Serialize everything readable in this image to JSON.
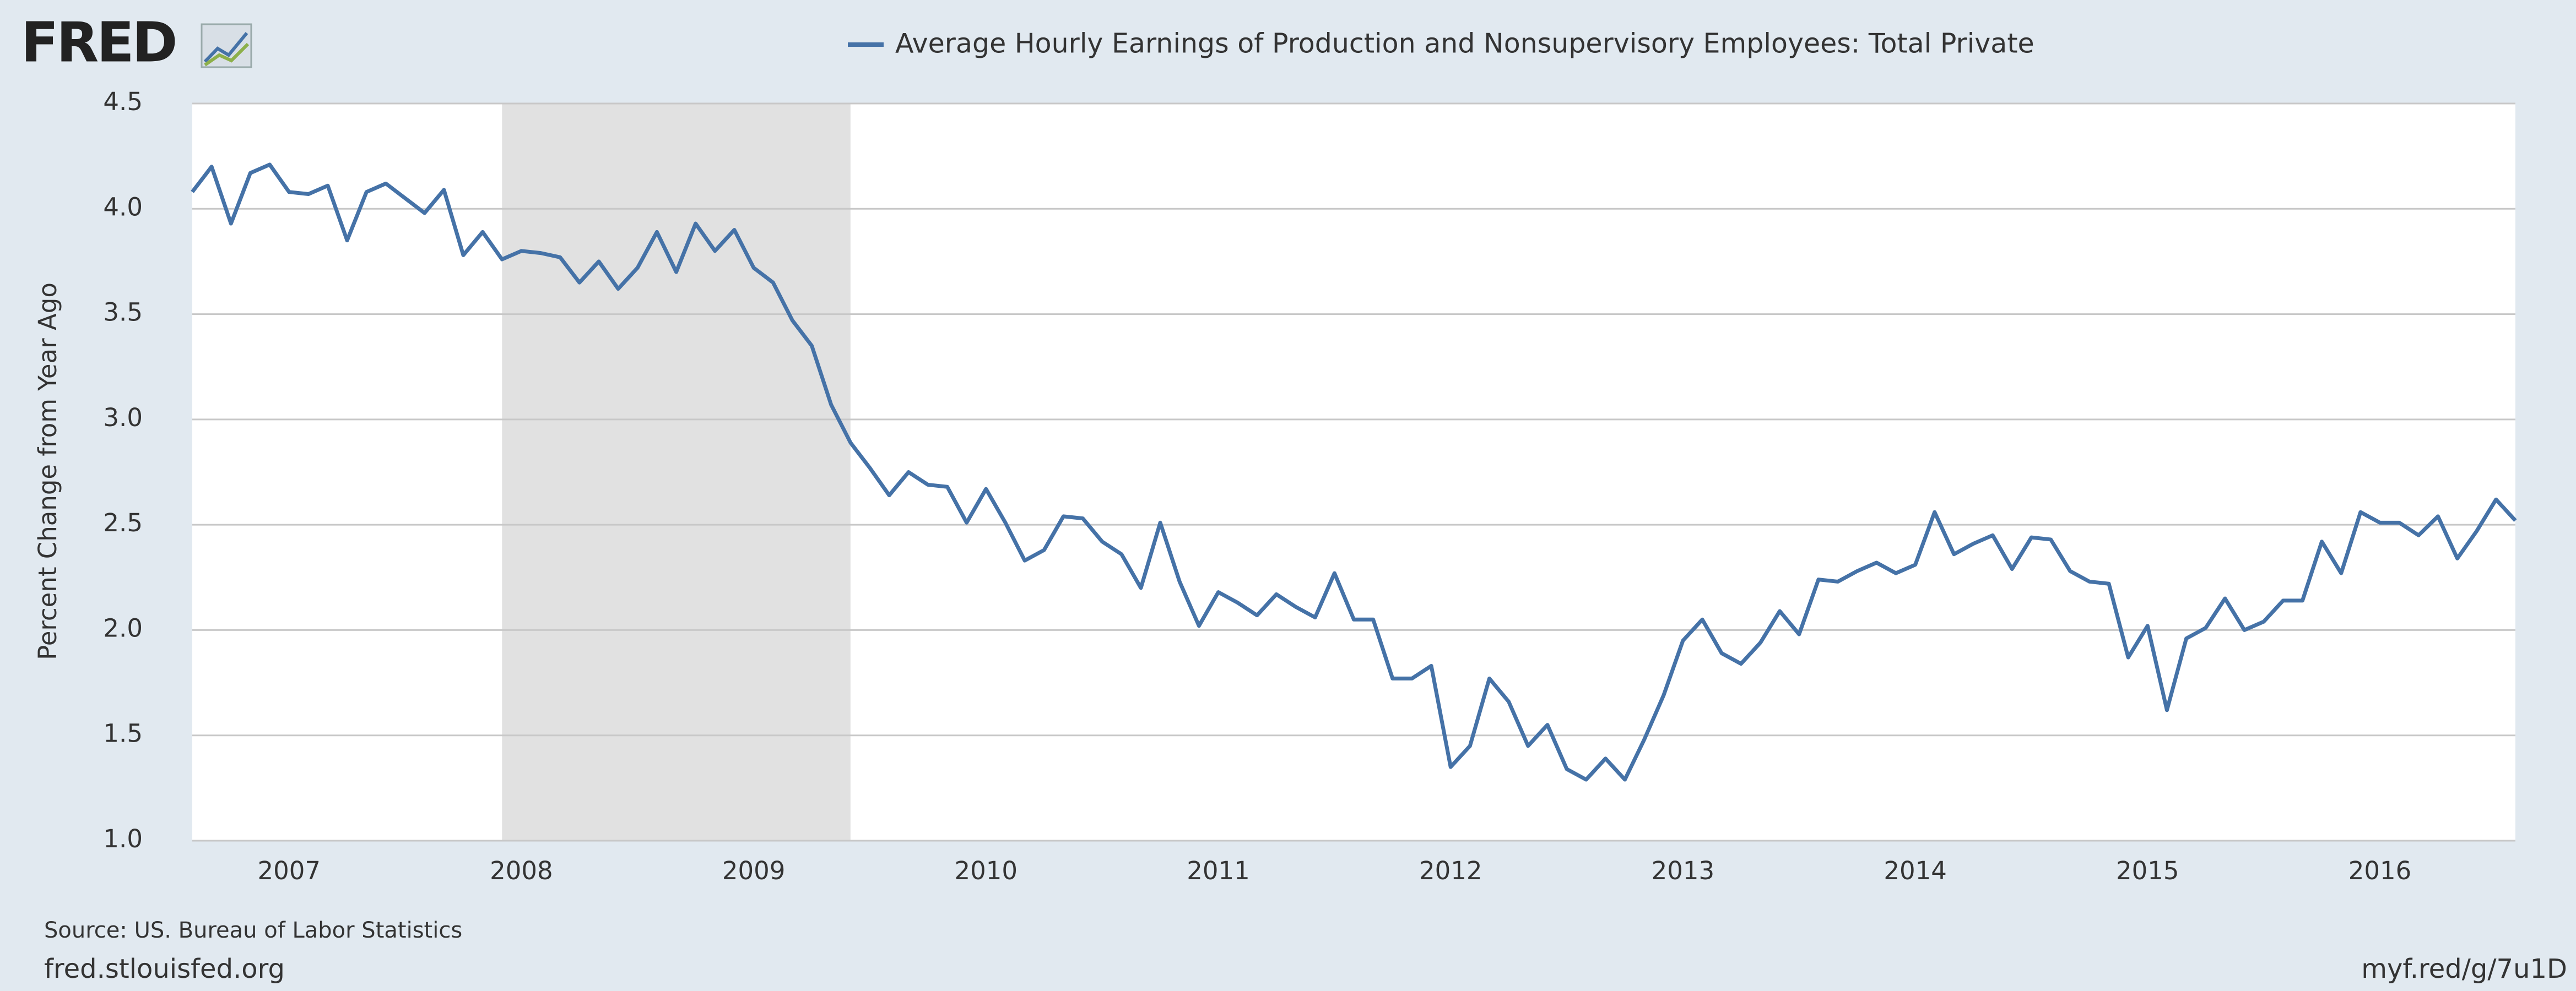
{
  "chart_data": {
    "type": "line",
    "logo": "FRED",
    "ylabel": "Percent Change from Year Ago",
    "source": "Source: US. Bureau of Labor Statistics",
    "site": "fred.stlouisfed.org",
    "short_url": "myf.red/g/7u1D",
    "grid": true,
    "recession_color": "#e1e1e1",
    "recessions": [
      [
        "2007-12",
        "2009-06"
      ]
    ],
    "xlim": [
      "2006-08",
      "2016-08"
    ],
    "xticks": [
      "2007",
      "2008",
      "2009",
      "2010",
      "2011",
      "2012",
      "2013",
      "2014",
      "2015",
      "2016"
    ],
    "ylim": [
      1.0,
      4.5
    ],
    "yticks": [
      {
        "value": 1,
        "label": "1.0"
      },
      1.5,
      {
        "value": 2,
        "label": "2.0"
      },
      2.5,
      {
        "value": 3,
        "label": "3.0"
      },
      3.5,
      {
        "value": 4,
        "label": "4.0"
      },
      4.5
    ],
    "x": [
      "2006-08",
      "2006-09",
      "2006-10",
      "2006-11",
      "2006-12",
      "2007-01",
      "2007-02",
      "2007-03",
      "2007-04",
      "2007-05",
      "2007-06",
      "2007-07",
      "2007-08",
      "2007-09",
      "2007-10",
      "2007-11",
      "2007-12",
      "2008-01",
      "2008-02",
      "2008-03",
      "2008-04",
      "2008-05",
      "2008-06",
      "2008-07",
      "2008-08",
      "2008-09",
      "2008-10",
      "2008-11",
      "2008-12",
      "2009-01",
      "2009-02",
      "2009-03",
      "2009-04",
      "2009-05",
      "2009-06",
      "2009-07",
      "2009-08",
      "2009-09",
      "2009-10",
      "2009-11",
      "2009-12",
      "2010-01",
      "2010-02",
      "2010-03",
      "2010-04",
      "2010-05",
      "2010-06",
      "2010-07",
      "2010-08",
      "2010-09",
      "2010-10",
      "2010-11",
      "2010-12",
      "2011-01",
      "2011-02",
      "2011-03",
      "2011-04",
      "2011-05",
      "2011-06",
      "2011-07",
      "2011-08",
      "2011-09",
      "2011-10",
      "2011-11",
      "2011-12",
      "2012-01",
      "2012-02",
      "2012-03",
      "2012-04",
      "2012-05",
      "2012-06",
      "2012-07",
      "2012-08",
      "2012-09",
      "2012-10",
      "2012-11",
      "2012-12",
      "2013-01",
      "2013-02",
      "2013-03",
      "2013-04",
      "2013-05",
      "2013-06",
      "2013-07",
      "2013-08",
      "2013-09",
      "2013-10",
      "2013-11",
      "2013-12",
      "2014-01",
      "2014-02",
      "2014-03",
      "2014-04",
      "2014-05",
      "2014-06",
      "2014-07",
      "2014-08",
      "2014-09",
      "2014-10",
      "2014-11",
      "2014-12",
      "2015-01",
      "2015-02",
      "2015-03",
      "2015-04",
      "2015-05",
      "2015-06",
      "2015-07",
      "2015-08",
      "2015-09",
      "2015-10",
      "2015-11",
      "2015-12",
      "2016-01",
      "2016-02",
      "2016-03",
      "2016-04",
      "2016-05",
      "2016-06",
      "2016-07",
      "2016-08"
    ],
    "series": [
      {
        "name": "Average Hourly Earnings of Production and Nonsupervisory Employees: Total Private",
        "color": "#4572a7",
        "values": [
          4.08,
          4.2,
          3.93,
          4.17,
          4.21,
          4.08,
          4.07,
          4.11,
          3.85,
          4.08,
          4.12,
          4.05,
          3.98,
          4.09,
          3.78,
          3.89,
          3.76,
          3.8,
          3.79,
          3.77,
          3.65,
          3.75,
          3.62,
          3.72,
          3.89,
          3.7,
          3.93,
          3.8,
          3.9,
          3.72,
          3.65,
          3.47,
          3.35,
          3.07,
          2.89,
          2.77,
          2.64,
          2.75,
          2.69,
          2.68,
          2.51,
          2.67,
          2.51,
          2.33,
          2.38,
          2.54,
          2.53,
          2.42,
          2.36,
          2.2,
          2.51,
          2.23,
          2.02,
          2.18,
          2.13,
          2.07,
          2.17,
          2.11,
          2.06,
          2.27,
          2.05,
          2.05,
          1.77,
          1.77,
          1.83,
          1.35,
          1.45,
          1.77,
          1.66,
          1.45,
          1.55,
          1.34,
          1.29,
          1.39,
          1.29,
          1.48,
          1.69,
          1.95,
          2.05,
          1.89,
          1.84,
          1.94,
          2.09,
          1.98,
          2.24,
          2.23,
          2.28,
          2.32,
          2.27,
          2.31,
          2.56,
          2.36,
          2.41,
          2.45,
          2.29,
          2.44,
          2.43,
          2.28,
          2.23,
          2.22,
          1.87,
          2.02,
          1.62,
          1.96,
          2.01,
          2.15,
          2.0,
          2.04,
          2.14,
          2.14,
          2.42,
          2.27,
          2.56,
          2.51,
          2.51,
          2.45,
          2.54,
          2.34,
          2.47,
          2.62,
          2.52
        ]
      }
    ]
  }
}
